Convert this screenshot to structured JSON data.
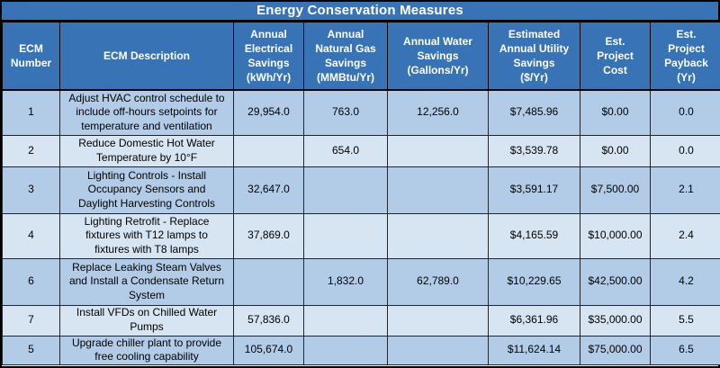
{
  "title": "Energy Conservation Measures",
  "colors": {
    "header_bg": "#3874B5",
    "header_text": "#FFFFFF",
    "band_dark": "#B2CCE7",
    "band_light": "#D7E4F1",
    "body_text": "#000000",
    "grid": "#20262E"
  },
  "table": {
    "columns": [
      {
        "label": "ECM\nNumber"
      },
      {
        "label": "ECM Description"
      },
      {
        "label": "Annual\nElectrical\nSavings\n(kWh/Yr)"
      },
      {
        "label": "Annual\nNatural Gas\nSavings\n(MMBtu/Yr)"
      },
      {
        "label": "Annual Water\nSavings\n(Gallons/Yr)"
      },
      {
        "label": "Estimated\nAnnual Utility\nSavings\n($/Yr)"
      },
      {
        "label": "Est.\nProject\nCost"
      },
      {
        "label": "Est.\nProject\nPayback\n(Yr)"
      }
    ],
    "rows": [
      {
        "cells": [
          "1",
          "Adjust HVAC control schedule to\ninclude off-hours setpoints for\ntemperature and ventilation",
          "29,954.0",
          "763.0",
          "12,256.0",
          "$7,485.96",
          "$0.00",
          "0.0"
        ]
      },
      {
        "cells": [
          "2",
          "Reduce Domestic Hot Water\nTemperature by 10°F",
          "",
          "654.0",
          "",
          "$3,539.78",
          "$0.00",
          "0.0"
        ]
      },
      {
        "cells": [
          "3",
          "Lighting Controls - Install\nOccupancy Sensors and\nDaylight Harvesting Controls",
          "32,647.0",
          "",
          "",
          "$3,591.17",
          "$7,500.00",
          "2.1"
        ]
      },
      {
        "cells": [
          "4",
          "Lighting Retrofit - Replace\nfixtures with T12 lamps to\nfixtures with T8 lamps",
          "37,869.0",
          "",
          "",
          "$4,165.59",
          "$10,000.00",
          "2.4"
        ]
      },
      {
        "cells": [
          "6",
          "Replace Leaking Steam Valves\nand Install a Condensate Return\nSystem",
          "",
          "1,832.0",
          "62,789.0",
          "$10,229.65",
          "$42,500.00",
          "4.2"
        ]
      },
      {
        "cells": [
          "7",
          "Install VFDs on Chilled Water\nPumps",
          "57,836.0",
          "",
          "",
          "$6,361.96",
          "$35,000.00",
          "5.5"
        ]
      },
      {
        "cells": [
          "5",
          "Upgrade chiller plant to provide\nfree cooling capability",
          "105,674.0",
          "",
          "",
          "$11,624.14",
          "$75,000.00",
          "6.5"
        ]
      }
    ]
  }
}
